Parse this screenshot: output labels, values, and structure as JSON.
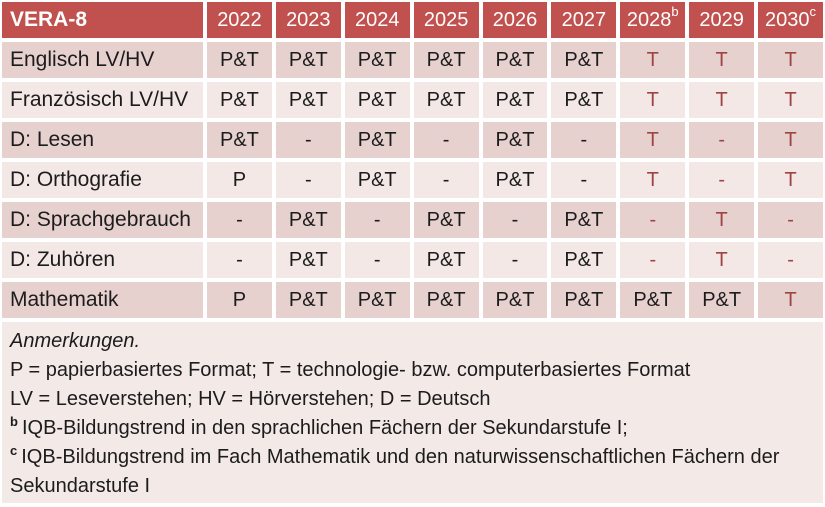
{
  "colors": {
    "header_bg": "#c0514f",
    "header_text": "#ffffff",
    "row_dark_bg": "#e7d1cf",
    "row_light_bg": "#f3e8e6",
    "notes_bg": "#f3e9e7",
    "text": "#1c1c1c",
    "tech_red": "#9e4442"
  },
  "table": {
    "title": "VERA-8",
    "years": [
      {
        "label": "2022",
        "sup": ""
      },
      {
        "label": "2023",
        "sup": ""
      },
      {
        "label": "2024",
        "sup": ""
      },
      {
        "label": "2025",
        "sup": ""
      },
      {
        "label": "2026",
        "sup": ""
      },
      {
        "label": "2027",
        "sup": ""
      },
      {
        "label": "2028",
        "sup": "b"
      },
      {
        "label": "2029",
        "sup": ""
      },
      {
        "label": "2030",
        "sup": "c"
      }
    ],
    "rows": [
      {
        "label": "Englisch LV/HV",
        "values": [
          "P&T",
          "P&T",
          "P&T",
          "P&T",
          "P&T",
          "P&T",
          "T",
          "T",
          "T"
        ]
      },
      {
        "label": "Französisch LV/HV",
        "values": [
          "P&T",
          "P&T",
          "P&T",
          "P&T",
          "P&T",
          "P&T",
          "T",
          "T",
          "T"
        ]
      },
      {
        "label": "D: Lesen",
        "values": [
          "P&T",
          "-",
          "P&T",
          "-",
          "P&T",
          "-",
          "T",
          "-",
          "T"
        ]
      },
      {
        "label": "D: Orthografie",
        "values": [
          "P",
          "-",
          "P&T",
          "-",
          "P&T",
          "-",
          "T",
          "-",
          "T"
        ]
      },
      {
        "label": "D: Sprachgebrauch",
        "values": [
          "-",
          "P&T",
          "-",
          "P&T",
          "-",
          "P&T",
          "-",
          "T",
          "-"
        ]
      },
      {
        "label": "D: Zuhören",
        "values": [
          "-",
          "P&T",
          "-",
          "P&T",
          "-",
          "P&T",
          "-",
          "T",
          "-"
        ]
      },
      {
        "label": "Mathematik",
        "values": [
          "P",
          "P&T",
          "P&T",
          "P&T",
          "P&T",
          "P&T",
          "P&T",
          "P&T",
          "T"
        ]
      }
    ],
    "tech_columns_start_index": 6
  },
  "notes": {
    "heading": "Anmerkungen.",
    "lines": [
      {
        "sup": "",
        "text": "P = papierbasiertes Format; T = technologie- bzw. computerbasiertes Format"
      },
      {
        "sup": "",
        "text": "LV = Leseverstehen; HV = Hörverstehen; D = Deutsch"
      },
      {
        "sup": "b",
        "text": "IQB-Bildungstrend in den sprachlichen Fächern der Sekundarstufe I;"
      },
      {
        "sup": "c",
        "text": "IQB-Bildungstrend im Fach Mathematik und den naturwissenschaftlichen Fächern der Sekundarstufe I"
      }
    ]
  }
}
